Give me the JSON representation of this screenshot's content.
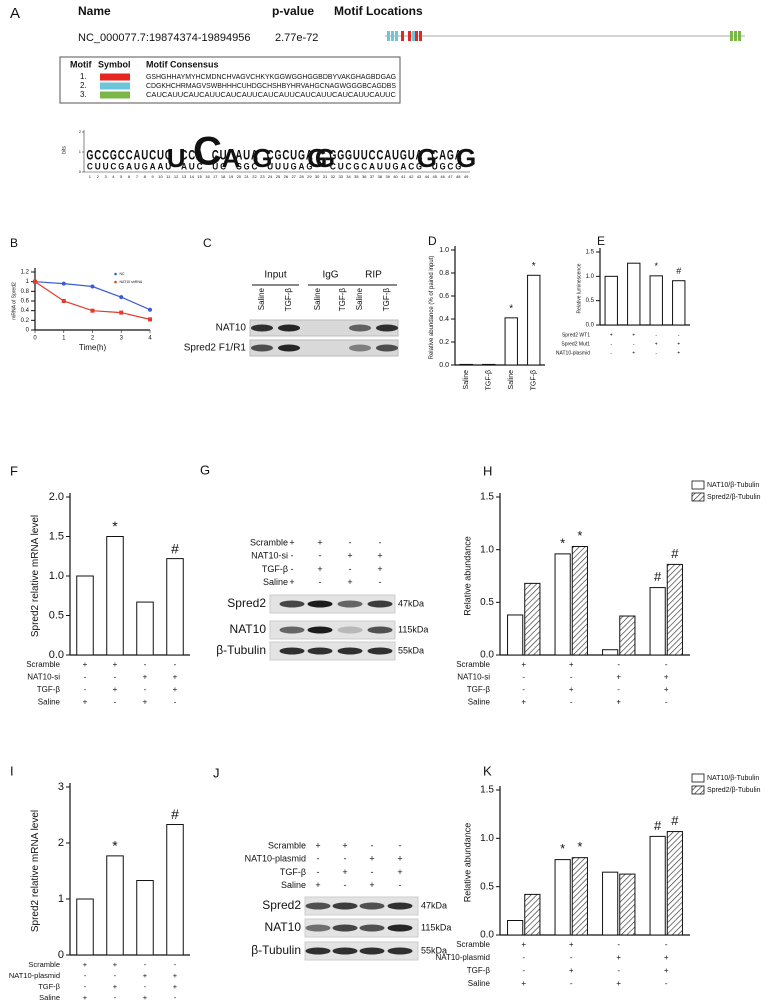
{
  "panel_a": {
    "label": "A",
    "header": {
      "name": "Name",
      "pvalue": "p-value",
      "locations": "Motif Locations"
    },
    "row": {
      "name": "NC_000077.7:19874374-19894956",
      "pvalue": "2.77e-72"
    },
    "motif_table": {
      "headers": [
        "Motif",
        "Symbol",
        "Motif Consensus"
      ],
      "rows": [
        {
          "motif": "1.",
          "color": "#e8251f",
          "consensus": "GSHGHHAYMYHCMDNCHVAGVCHKYKGGWGGHGGBDBYVAKGHAGBDGAG"
        },
        {
          "motif": "2.",
          "color": "#6cc5d8",
          "consensus": "CDGKHCHRMAGVSWBHHHCUHDGCHSHBYHRVAHGCNAGWGGGBCAGDBS"
        },
        {
          "motif": "3.",
          "color": "#7ab648",
          "consensus": "CAUCAUUCAUCAUUCAUCAUUCAUCAUUCAUCAUUCAUCAUUCAUUC"
        }
      ]
    },
    "logo": {
      "ylabel": "bits",
      "yticks": [
        0,
        1,
        2
      ],
      "positions": [
        1,
        2,
        3,
        4,
        5,
        6,
        7,
        8,
        9,
        10,
        11,
        12,
        13,
        14,
        15,
        16,
        17,
        18,
        19,
        20,
        21,
        22,
        23,
        24,
        25,
        26,
        27,
        28,
        29,
        30,
        31,
        32,
        33,
        34,
        35,
        36,
        37,
        38,
        39,
        40,
        41,
        42,
        43,
        44,
        45,
        46,
        47,
        48,
        49
      ],
      "columns": [
        "GC",
        "CU",
        "CU",
        "GC",
        "CG",
        "CA",
        "AU",
        "UG",
        "CA",
        "UA",
        "CU",
        "U",
        "CA",
        "CU",
        "AC",
        "C",
        "CU",
        "UC",
        "A",
        "AG",
        "UG",
        "AC",
        "G",
        "CU",
        "GU",
        "CU",
        "UG",
        "GA",
        "AG",
        "G",
        "G",
        "GC",
        "GU",
        "GC",
        "UG",
        "UC",
        "CA",
        "CU",
        "AU",
        "UG",
        "GA",
        "UC",
        "AG",
        "G",
        "CU",
        "AG",
        "GC",
        "AG",
        "G"
      ]
    }
  },
  "panel_c": {
    "label": "C",
    "groups": [
      "Input",
      "IgG",
      "RIP"
    ],
    "lanes": [
      "Saline",
      "TGF-β",
      "Saline",
      "TGF-β",
      "Saline",
      "TGF-β"
    ],
    "rows": [
      "NAT10",
      "Spred2 F1/R1"
    ]
  },
  "panel_g": {
    "label": "G",
    "conditions": [
      {
        "name": "Scramble",
        "values": [
          "+",
          "+",
          "-",
          "-"
        ]
      },
      {
        "name": "NAT10-si",
        "values": [
          "-",
          "-",
          "+",
          "+"
        ]
      },
      {
        "name": "TGF-β",
        "values": [
          "-",
          "+",
          "-",
          "+"
        ]
      },
      {
        "name": "Saline",
        "values": [
          "+",
          "-",
          "+",
          "-"
        ]
      }
    ],
    "bands": [
      {
        "name": "Spred2",
        "size": "47kDa"
      },
      {
        "name": "NAT10",
        "size": "115kDa"
      },
      {
        "name": "β-Tubulin",
        "size": "55kDa"
      }
    ]
  },
  "panel_j": {
    "label": "J",
    "conditions": [
      {
        "name": "Scramble",
        "values": [
          "+",
          "+",
          "-",
          "-"
        ]
      },
      {
        "name": "NAT10-plasmid",
        "values": [
          "-",
          "-",
          "+",
          "+"
        ]
      },
      {
        "name": "TGF-β",
        "values": [
          "-",
          "+",
          "-",
          "+"
        ]
      },
      {
        "name": "Saline",
        "values": [
          "+",
          "-",
          "+",
          "-"
        ]
      }
    ],
    "bands": [
      {
        "name": "Spred2",
        "size": "47kDa"
      },
      {
        "name": "NAT10",
        "size": "115kDa"
      },
      {
        "name": "β-Tubulin",
        "size": "55kDa"
      }
    ]
  },
  "chart_data": [
    {
      "type": "line",
      "label": "B",
      "ylabel": "mRNA of Spred2",
      "xlabel": "Time(h)",
      "x": [
        0,
        1,
        2,
        3,
        4
      ],
      "xlim": [
        0,
        4
      ],
      "xticks": [
        0,
        1,
        2,
        3,
        4
      ],
      "ylim": [
        0,
        1.2
      ],
      "yticks": [
        0,
        0.2,
        0.4,
        0.6,
        0.8,
        1,
        1.2
      ],
      "legend": "upper right",
      "series": [
        {
          "name": "NC",
          "color": "#3b5bd6",
          "values": [
            1,
            0.96,
            0.9,
            0.68,
            0.42
          ]
        },
        {
          "name": "NAT10 shRNA",
          "color": "#e23a2e",
          "values": [
            1,
            0.6,
            0.4,
            0.36,
            0.22
          ]
        }
      ]
    },
    {
      "type": "bar",
      "label": "D",
      "ylabel": "Relative abundance (% of paired input)",
      "categories": [
        "Saline",
        "TGF-β",
        "Saline",
        "TGF-β"
      ],
      "values": [
        0.005,
        0.005,
        0.41,
        0.78
      ],
      "annotations": [
        null,
        null,
        "*",
        "*"
      ],
      "color": "#ffffff",
      "ylim": [
        0,
        1
      ],
      "yticks": [
        {
          "value": 0,
          "label": "0.0"
        },
        0.2,
        0.4,
        0.6,
        0.8,
        {
          "value": 1,
          "label": "1.0"
        }
      ]
    },
    {
      "type": "bar",
      "label": "E",
      "ylabel": "Relative luminescence",
      "values": [
        1,
        1.27,
        1.01,
        0.91
      ],
      "annotations": [
        null,
        null,
        "*",
        "#"
      ],
      "color": "#ffffff",
      "ylim": [
        0,
        1.5
      ],
      "yticks": [
        {
          "value": 0,
          "label": "0.0"
        },
        0.5,
        {
          "value": 1,
          "label": "1.0"
        },
        1.5
      ],
      "conditions": [
        {
          "name": "Spred2 WT1",
          "values": [
            "+",
            "+",
            "-",
            "-"
          ]
        },
        {
          "name": "Spred2 Mut1",
          "values": [
            "-",
            "-",
            "+",
            "+"
          ]
        },
        {
          "name": "NAT10-plasmid",
          "values": [
            "-",
            "+",
            "-",
            "+"
          ]
        }
      ]
    },
    {
      "type": "bar",
      "label": "F",
      "ylabel": "Spred2 relative mRNA level",
      "values": [
        1,
        1.5,
        0.67,
        1.22
      ],
      "annotations": [
        null,
        "*",
        null,
        "#"
      ],
      "color": "#ffffff",
      "ylim": [
        0,
        2
      ],
      "yticks": [
        {
          "value": 0,
          "label": "0.0"
        },
        0.5,
        {
          "value": 1,
          "label": "1.0"
        },
        1.5,
        {
          "value": 2,
          "label": "2.0"
        }
      ],
      "conditions": [
        {
          "name": "Scramble",
          "values": [
            "+",
            "+",
            "-",
            "-"
          ]
        },
        {
          "name": "NAT10-si",
          "values": [
            "-",
            "-",
            "+",
            "+"
          ]
        },
        {
          "name": "TGF-β",
          "values": [
            "-",
            "+",
            "-",
            "+"
          ]
        },
        {
          "name": "Saline",
          "values": [
            "+",
            "-",
            "+",
            "-"
          ]
        }
      ]
    },
    {
      "type": "bar",
      "label": "H",
      "ylabel": "Relative abundance",
      "legend": "upper right",
      "ylim": [
        0,
        1.5
      ],
      "yticks": [
        {
          "value": 0,
          "label": "0.0"
        },
        0.5,
        {
          "value": 1,
          "label": "1.0"
        },
        1.5
      ],
      "series": [
        {
          "name": "NAT10/β-Tubulin",
          "color": "#ffffff",
          "values": [
            0.38,
            0.96,
            0.05,
            0.64
          ],
          "annotations": [
            null,
            "*",
            null,
            "#"
          ]
        },
        {
          "name": "Spred2/β-Tubulin",
          "color": "#ffffff",
          "hatch": true,
          "values": [
            0.68,
            1.03,
            0.37,
            0.86
          ],
          "annotations": [
            null,
            "*",
            null,
            "#"
          ]
        }
      ],
      "conditions": [
        {
          "name": "Scramble",
          "values": [
            "+",
            "+",
            "-",
            "-"
          ]
        },
        {
          "name": "NAT10-si",
          "values": [
            "-",
            "-",
            "+",
            "+"
          ]
        },
        {
          "name": "TGF-β",
          "values": [
            "-",
            "+",
            "-",
            "+"
          ]
        },
        {
          "name": "Saline",
          "values": [
            "+",
            "-",
            "+",
            "-"
          ]
        }
      ]
    },
    {
      "type": "bar",
      "label": "I",
      "ylabel": "Spred2 relative mRNA level",
      "values": [
        1,
        1.77,
        1.33,
        2.33
      ],
      "annotations": [
        null,
        "*",
        null,
        "#"
      ],
      "color": "#ffffff",
      "ylim": [
        0,
        3
      ],
      "yticks": [
        0,
        1,
        2,
        3
      ],
      "conditions": [
        {
          "name": "Scramble",
          "values": [
            "+",
            "+",
            "-",
            "-"
          ]
        },
        {
          "name": "NAT10-plasmid",
          "values": [
            "-",
            "-",
            "+",
            "+"
          ]
        },
        {
          "name": "TGF-β",
          "values": [
            "-",
            "+",
            "-",
            "+"
          ]
        },
        {
          "name": "Saline",
          "values": [
            "+",
            "-",
            "+",
            "-"
          ]
        }
      ]
    },
    {
      "type": "bar",
      "label": "K",
      "ylabel": "Relative abundance",
      "legend": "upper right",
      "ylim": [
        0,
        1.5
      ],
      "yticks": [
        {
          "value": 0,
          "label": "0.0"
        },
        0.5,
        {
          "value": 1,
          "label": "1.0"
        },
        1.5
      ],
      "series": [
        {
          "name": "NAT10/β-Tubulin",
          "color": "#ffffff",
          "values": [
            0.15,
            0.78,
            0.65,
            1.02
          ],
          "annotations": [
            null,
            "*",
            null,
            "#"
          ]
        },
        {
          "name": "Spred2/β-Tubulin",
          "color": "#ffffff",
          "hatch": true,
          "values": [
            0.42,
            0.8,
            0.63,
            1.07
          ],
          "annotations": [
            null,
            "*",
            null,
            "#"
          ]
        }
      ],
      "conditions": [
        {
          "name": "Scramble",
          "values": [
            "+",
            "+",
            "-",
            "-"
          ]
        },
        {
          "name": "NAT10-plasmid",
          "values": [
            "-",
            "-",
            "+",
            "+"
          ]
        },
        {
          "name": "TGF-β",
          "values": [
            "-",
            "+",
            "-",
            "+"
          ]
        },
        {
          "name": "Saline",
          "values": [
            "+",
            "-",
            "+",
            "-"
          ]
        }
      ]
    }
  ]
}
